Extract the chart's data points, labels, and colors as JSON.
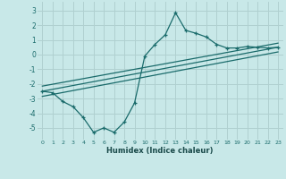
{
  "title": "",
  "xlabel": "Humidex (Indice chaleur)",
  "bg_color": "#c8e8e8",
  "grid_color": "#b0d0d0",
  "line_color": "#1a6b6b",
  "xlim": [
    -0.5,
    23.5
  ],
  "ylim": [
    -5.8,
    3.6
  ],
  "xticks": [
    0,
    1,
    2,
    3,
    4,
    5,
    6,
    7,
    8,
    9,
    10,
    11,
    12,
    13,
    14,
    15,
    16,
    17,
    18,
    19,
    20,
    21,
    22,
    23
  ],
  "yticks": [
    -5,
    -4,
    -3,
    -2,
    -1,
    0,
    1,
    2,
    3
  ],
  "main_x": [
    0,
    1,
    2,
    3,
    4,
    5,
    6,
    7,
    8,
    9,
    10,
    11,
    12,
    13,
    14,
    15,
    16,
    17,
    18,
    19,
    20,
    21,
    22,
    23
  ],
  "main_y": [
    -2.5,
    -2.6,
    -3.2,
    -3.55,
    -4.3,
    -5.3,
    -5.0,
    -5.3,
    -4.6,
    -3.3,
    -0.1,
    0.7,
    1.35,
    2.85,
    1.65,
    1.45,
    1.2,
    0.7,
    0.45,
    0.45,
    0.55,
    0.5,
    0.45,
    0.5
  ],
  "line1_x": [
    0,
    23
  ],
  "line1_y": [
    -2.5,
    0.5
  ],
  "line2_x": [
    0,
    23
  ],
  "line2_y": [
    -2.85,
    0.18
  ],
  "line3_x": [
    0,
    23
  ],
  "line3_y": [
    -2.15,
    0.78
  ]
}
